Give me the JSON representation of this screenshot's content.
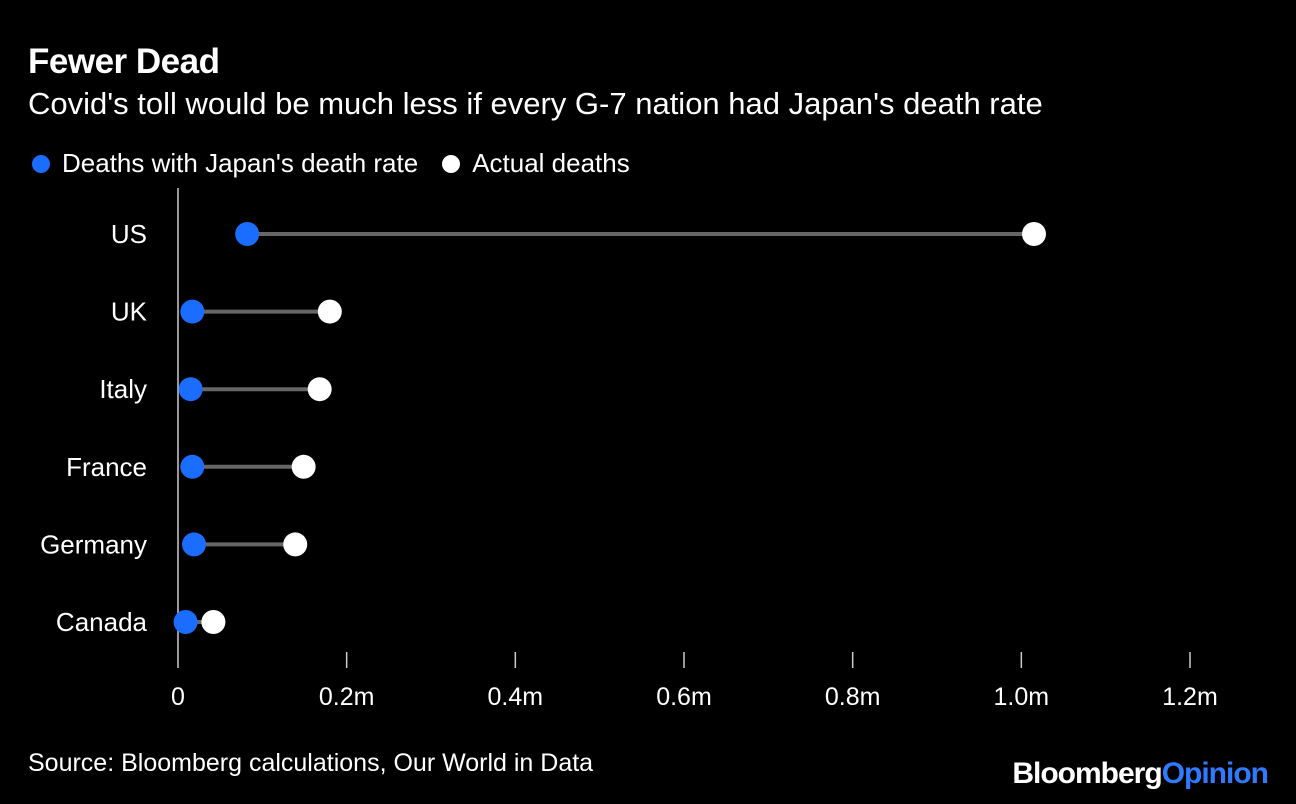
{
  "header": {
    "title": "Fewer Dead",
    "subtitle": "Covid's toll would be much less if every G-7 nation had Japan's death rate"
  },
  "legend": {
    "items": [
      {
        "label": "Deaths with Japan's death rate",
        "color": "#1a6dff"
      },
      {
        "label": "Actual deaths",
        "color": "#ffffff"
      }
    ]
  },
  "footer": {
    "source": "Source: Bloomberg calculations, Our World in Data",
    "brand_part1": "Bloomberg",
    "brand_part2": "Opinion"
  },
  "chart_data": {
    "type": "dumbbell",
    "title": "Fewer Dead",
    "subtitle": "Covid's toll would be much less if every G-7 nation had Japan's death rate",
    "categories": [
      "US",
      "UK",
      "Italy",
      "France",
      "Germany",
      "Canada"
    ],
    "series": [
      {
        "name": "Deaths with Japan's death rate",
        "color": "#1a6dff",
        "values": [
          0.082,
          0.017,
          0.015,
          0.017,
          0.019,
          0.009
        ]
      },
      {
        "name": "Actual deaths",
        "color": "#ffffff",
        "values": [
          1.015,
          0.18,
          0.168,
          0.149,
          0.139,
          0.042
        ]
      }
    ],
    "x_ticks": [
      "0",
      "0.2m",
      "0.4m",
      "0.6m",
      "0.8m",
      "1.0m",
      "1.2m"
    ],
    "x_tick_values": [
      0,
      0.2,
      0.4,
      0.6,
      0.8,
      1.0,
      1.2
    ],
    "xlim": [
      0,
      1.2
    ],
    "unit": "million deaths",
    "xlabel": "",
    "ylabel": "",
    "grid": false,
    "legend_position": "top-left",
    "connector_color": "#666666"
  }
}
